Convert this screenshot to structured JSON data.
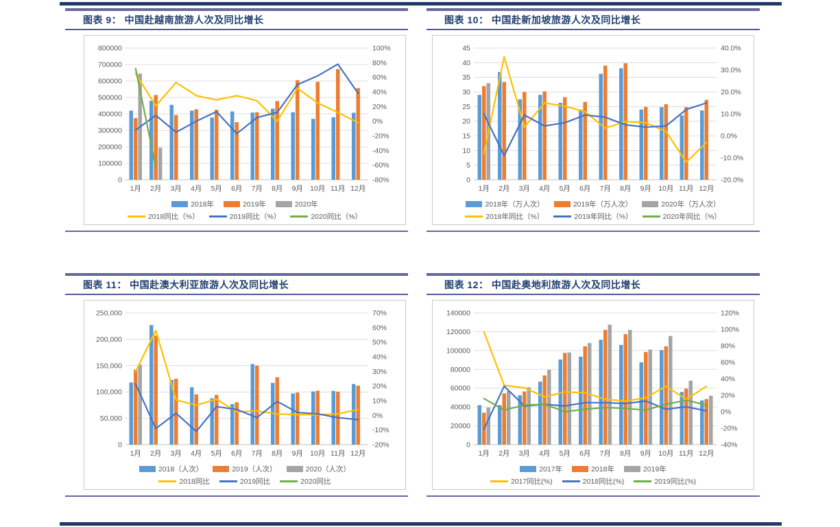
{
  "page": {
    "background": "#ffffff",
    "stripe_color": "#1F3864",
    "header_bar_color": "#63679E",
    "title_color": "#1F3E6E",
    "axis_text_color": "#595959",
    "grid_color": "#DCDCDC",
    "frame_border_color": "#C9C9C9"
  },
  "chart_data": [
    {
      "type": "bar",
      "combo": "bar+line",
      "title": "图表 9： 中国赴越南旅游人次及同比增长",
      "categories": [
        "1月",
        "2月",
        "3月",
        "4月",
        "5月",
        "6月",
        "7月",
        "8月",
        "9月",
        "10月",
        "11月",
        "12月"
      ],
      "left_axis": {
        "min": 0,
        "max": 800000,
        "step": 100000,
        "comma": false
      },
      "right_axis": {
        "min": -80,
        "max": 100,
        "step": 20,
        "decimals": 0
      },
      "legend_position": "bottom",
      "grid": true,
      "bar_series": [
        {
          "name": "2018年",
          "color": "#5B9BD5",
          "values": [
            420000,
            480000,
            455000,
            420000,
            378000,
            415000,
            408000,
            432000,
            410000,
            370000,
            380000,
            407000
          ]
        },
        {
          "name": "2019年",
          "color": "#ED7D31",
          "values": [
            375000,
            515000,
            393000,
            428000,
            425000,
            350000,
            410000,
            478000,
            605000,
            595000,
            672000,
            557000
          ]
        },
        {
          "name": "2020年",
          "color": "#A5A5A5",
          "values": [
            645000,
            195000,
            null,
            null,
            null,
            null,
            null,
            null,
            null,
            null,
            null,
            null
          ]
        }
      ],
      "line_series": [
        {
          "name": "2018同比（%）",
          "color": "#FFC000",
          "values": [
            65,
            21,
            53,
            35,
            29,
            35,
            28,
            0,
            45,
            25,
            12,
            -2
          ]
        },
        {
          "name": "2019同比（%）",
          "color": "#4472C4",
          "values": [
            -12,
            8,
            -15,
            0,
            13,
            -17,
            5,
            12,
            50,
            62,
            78,
            38
          ]
        },
        {
          "name": "2020同比（%）",
          "color": "#70AD47",
          "values": [
            72,
            -63,
            null,
            null,
            null,
            null,
            null,
            null,
            null,
            null,
            null,
            null
          ]
        }
      ]
    },
    {
      "type": "bar",
      "combo": "bar+line",
      "title": "图表 10： 中国赴新加坡旅游人次及同比增长",
      "categories": [
        "1月",
        "2月",
        "3月",
        "4月",
        "5月",
        "6月",
        "7月",
        "8月",
        "9月",
        "10月",
        "11月",
        "12月"
      ],
      "left_axis": {
        "min": 0,
        "max": 45,
        "step": 5,
        "comma": false
      },
      "right_axis": {
        "min": -20,
        "max": 40,
        "step": 10,
        "decimals": 1
      },
      "legend_position": "bottom",
      "grid": true,
      "bar_series": [
        {
          "name": "2018年（万人次）",
          "color": "#5B9BD5",
          "values": [
            29,
            36.8,
            27.5,
            29,
            26.3,
            24,
            36.2,
            38.1,
            24,
            24.8,
            22,
            23.7
          ]
        },
        {
          "name": "2019年（万人次）",
          "color": "#ED7D31",
          "values": [
            32,
            33.4,
            30,
            30.2,
            28.2,
            26.6,
            39,
            39.8,
            24.9,
            25.8,
            24.8,
            27.3
          ]
        },
        {
          "name": "2020年（万人次）",
          "color": "#A5A5A5",
          "values": [
            33,
            null,
            null,
            null,
            null,
            null,
            null,
            null,
            null,
            null,
            null,
            null
          ]
        }
      ],
      "line_series": [
        {
          "name": "2018年同比（%）",
          "color": "#FFC000",
          "values": [
            -8,
            36,
            4,
            15,
            13.5,
            11,
            3.5,
            6.5,
            6,
            2,
            -12,
            -3
          ]
        },
        {
          "name": "2019年同比（%）",
          "color": "#4472C4",
          "values": [
            10,
            -9,
            9.5,
            4.5,
            6,
            9.5,
            8.5,
            5,
            4,
            4.5,
            12,
            15
          ]
        },
        {
          "name": "2020年同比（%）",
          "color": "#70AD47",
          "values": [
            null,
            null,
            null,
            null,
            null,
            null,
            null,
            null,
            null,
            null,
            null,
            null
          ]
        }
      ]
    },
    {
      "type": "bar",
      "combo": "bar+line",
      "title": "图表 11： 中国赴澳大利亚旅游人次及同比增长",
      "categories": [
        "1月",
        "2月",
        "3月",
        "4月",
        "5月",
        "6月",
        "7月",
        "8月",
        "9月",
        "10月",
        "11月",
        "12月"
      ],
      "left_axis": {
        "min": 0,
        "max": 250000,
        "step": 50000,
        "comma": true
      },
      "right_axis": {
        "min": -20,
        "max": 70,
        "step": 10,
        "decimals": 0
      },
      "legend_position": "bottom",
      "grid": true,
      "bar_series": [
        {
          "name": "2018（人次）",
          "color": "#5B9BD5",
          "values": [
            118000,
            227000,
            123000,
            109000,
            88000,
            77000,
            153000,
            117000,
            97000,
            101000,
            102000,
            115000
          ]
        },
        {
          "name": "2019（人次）",
          "color": "#ED7D31",
          "values": [
            142000,
            207000,
            125000,
            95500,
            94500,
            80500,
            150000,
            128000,
            99000,
            102500,
            100500,
            112000
          ]
        },
        {
          "name": "2020（人次）",
          "color": "#A5A5A5",
          "values": [
            152000,
            null,
            null,
            null,
            null,
            null,
            null,
            null,
            null,
            null,
            null,
            null
          ]
        }
      ],
      "line_series": [
        {
          "name": "2018同比",
          "color": "#FFC000",
          "values": [
            30,
            58,
            10.5,
            7,
            11,
            2.5,
            3,
            1,
            0.5,
            0.5,
            1,
            4
          ]
        },
        {
          "name": "2019同比",
          "color": "#4472C4",
          "values": [
            21.5,
            -9,
            1.5,
            -11,
            6,
            4,
            -1.5,
            9.5,
            2,
            1,
            -1.5,
            -3
          ]
        },
        {
          "name": "2020同比",
          "color": "#70AD47",
          "values": [
            null,
            null,
            null,
            null,
            null,
            null,
            null,
            null,
            null,
            null,
            null,
            null
          ]
        }
      ]
    },
    {
      "type": "bar",
      "combo": "bar+line",
      "title": "图表 12： 中国赴奥地利旅游人次及同比增长",
      "categories": [
        "1月",
        "2月",
        "3月",
        "4月",
        "5月",
        "6月",
        "7月",
        "8月",
        "9月",
        "10月",
        "11月",
        "12月"
      ],
      "left_axis": {
        "min": 0,
        "max": 140000,
        "step": 20000,
        "comma": false
      },
      "right_axis": {
        "min": -40,
        "max": 120,
        "step": 20,
        "decimals": 0
      },
      "legend_position": "bottom",
      "grid": true,
      "bar_series": [
        {
          "name": "2017年",
          "color": "#5B9BD5",
          "values": [
            42000,
            42000,
            52500,
            67000,
            90500,
            93500,
            111500,
            106000,
            87500,
            100500,
            56000,
            47000
          ]
        },
        {
          "name": "2018年",
          "color": "#ED7D31",
          "values": [
            34000,
            54500,
            56500,
            73500,
            97500,
            104500,
            122000,
            117500,
            98500,
            104500,
            59500,
            48500
          ]
        },
        {
          "name": "2019年",
          "color": "#A5A5A5",
          "values": [
            39500,
            57000,
            61000,
            79500,
            98000,
            108000,
            127500,
            122000,
            101000,
            115500,
            68000,
            52000
          ]
        }
      ],
      "line_series": [
        {
          "name": "2017同比(%)",
          "color": "#FFC000",
          "values": [
            97,
            32,
            29,
            18,
            24,
            23,
            15,
            13,
            17,
            31,
            15,
            31
          ]
        },
        {
          "name": "2018同比(%)",
          "color": "#4472C4",
          "values": [
            -21,
            31,
            7,
            9,
            7,
            11,
            11,
            10,
            13,
            3,
            6,
            1
          ]
        },
        {
          "name": "2019同比(%)",
          "color": "#70AD47",
          "values": [
            16,
            2,
            8,
            9,
            0,
            3,
            5,
            4,
            2,
            9,
            14,
            8
          ]
        }
      ]
    }
  ]
}
